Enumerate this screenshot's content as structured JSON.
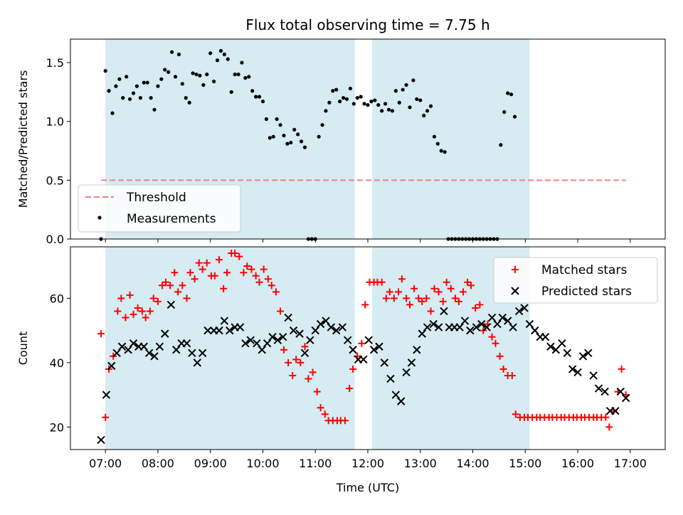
{
  "title": "Flux total observing time = 7.75 h",
  "chart_data": [
    {
      "type": "scatter",
      "ylabel": "Matched/Predicted stars",
      "xlim": [
        "06:20",
        "17:40"
      ],
      "ylim": [
        0,
        1.7
      ],
      "yticks": [
        0.0,
        0.5,
        1.0,
        1.5
      ],
      "ytick_labels": [
        "0.0",
        "0.5",
        "1.0",
        "1.5"
      ],
      "xticks": [
        "07:00",
        "08:00",
        "09:00",
        "10:00",
        "11:00",
        "12:00",
        "13:00",
        "14:00",
        "15:00",
        "16:00",
        "17:00"
      ],
      "shaded_intervals": [
        [
          "07:00",
          "11:45"
        ],
        [
          "12:05",
          "15:05"
        ]
      ],
      "legend_position": "lower-left",
      "threshold": {
        "name": "Threshold",
        "value": 0.5,
        "x_range": [
          "06:55",
          "16:55"
        ],
        "color": "#f08080"
      },
      "measurements": {
        "name": "Measurements",
        "color": "#000000",
        "points": [
          [
            "06:55",
            0.0
          ],
          [
            "07:00",
            1.43
          ],
          [
            "07:04",
            1.26
          ],
          [
            "07:08",
            1.07
          ],
          [
            "07:12",
            1.3
          ],
          [
            "07:16",
            1.36
          ],
          [
            "07:20",
            1.2
          ],
          [
            "07:24",
            1.38
          ],
          [
            "07:28",
            1.19
          ],
          [
            "07:32",
            1.24
          ],
          [
            "07:36",
            1.3
          ],
          [
            "07:40",
            1.2
          ],
          [
            "07:44",
            1.33
          ],
          [
            "07:48",
            1.33
          ],
          [
            "07:52",
            1.2
          ],
          [
            "07:56",
            1.1
          ],
          [
            "08:00",
            1.3
          ],
          [
            "08:04",
            1.36
          ],
          [
            "08:08",
            1.44
          ],
          [
            "08:12",
            1.42
          ],
          [
            "08:16",
            1.59
          ],
          [
            "08:20",
            1.38
          ],
          [
            "08:24",
            1.57
          ],
          [
            "08:28",
            1.32
          ],
          [
            "08:32",
            1.2
          ],
          [
            "08:36",
            1.16
          ],
          [
            "08:40",
            1.41
          ],
          [
            "08:44",
            1.4
          ],
          [
            "08:48",
            1.39
          ],
          [
            "08:52",
            1.31
          ],
          [
            "08:56",
            1.4
          ],
          [
            "09:00",
            1.58
          ],
          [
            "09:04",
            1.34
          ],
          [
            "09:08",
            1.52
          ],
          [
            "09:12",
            1.6
          ],
          [
            "09:16",
            1.57
          ],
          [
            "09:20",
            1.53
          ],
          [
            "09:24",
            1.25
          ],
          [
            "09:28",
            1.4
          ],
          [
            "09:32",
            1.4
          ],
          [
            "09:36",
            1.5
          ],
          [
            "09:40",
            1.37
          ],
          [
            "09:44",
            1.38
          ],
          [
            "09:48",
            1.26
          ],
          [
            "09:52",
            1.21
          ],
          [
            "09:56",
            1.21
          ],
          [
            "10:00",
            1.17
          ],
          [
            "10:04",
            1.02
          ],
          [
            "10:08",
            0.86
          ],
          [
            "10:12",
            0.87
          ],
          [
            "10:16",
            1.02
          ],
          [
            "10:20",
            0.97
          ],
          [
            "10:24",
            0.88
          ],
          [
            "10:28",
            0.81
          ],
          [
            "10:32",
            0.82
          ],
          [
            "10:36",
            0.93
          ],
          [
            "10:40",
            0.89
          ],
          [
            "10:44",
            0.83
          ],
          [
            "10:48",
            0.78
          ],
          [
            "10:52",
            0.0
          ],
          [
            "10:56",
            0.0
          ],
          [
            "11:00",
            0.0
          ],
          [
            "11:04",
            0.87
          ],
          [
            "11:08",
            0.97
          ],
          [
            "11:12",
            1.09
          ],
          [
            "11:16",
            1.16
          ],
          [
            "11:20",
            1.26
          ],
          [
            "11:24",
            1.27
          ],
          [
            "11:28",
            1.17
          ],
          [
            "11:32",
            1.2
          ],
          [
            "11:36",
            1.19
          ],
          [
            "11:40",
            1.28
          ],
          [
            "11:44",
            1.15
          ],
          [
            "11:48",
            1.2
          ],
          [
            "11:52",
            1.21
          ],
          [
            "11:56",
            1.15
          ],
          [
            "12:00",
            1.14
          ],
          [
            "12:04",
            1.17
          ],
          [
            "12:08",
            1.18
          ],
          [
            "12:12",
            1.14
          ],
          [
            "12:16",
            1.09
          ],
          [
            "12:20",
            1.15
          ],
          [
            "12:24",
            1.1
          ],
          [
            "12:28",
            1.09
          ],
          [
            "12:32",
            1.26
          ],
          [
            "12:36",
            1.16
          ],
          [
            "12:40",
            1.27
          ],
          [
            "12:44",
            1.31
          ],
          [
            "12:48",
            1.12
          ],
          [
            "12:52",
            1.35
          ],
          [
            "12:56",
            1.19
          ],
          [
            "13:00",
            1.18
          ],
          [
            "13:04",
            1.05
          ],
          [
            "13:08",
            1.09
          ],
          [
            "13:12",
            1.13
          ],
          [
            "13:16",
            0.87
          ],
          [
            "13:20",
            0.81
          ],
          [
            "13:24",
            0.75
          ],
          [
            "13:28",
            0.74
          ],
          [
            "13:32",
            0.0
          ],
          [
            "13:36",
            0.0
          ],
          [
            "13:40",
            0.0
          ],
          [
            "13:44",
            0.0
          ],
          [
            "13:48",
            0.0
          ],
          [
            "13:52",
            0.0
          ],
          [
            "13:56",
            0.0
          ],
          [
            "14:00",
            0.0
          ],
          [
            "14:04",
            0.0
          ],
          [
            "14:08",
            0.0
          ],
          [
            "14:12",
            0.0
          ],
          [
            "14:16",
            0.0
          ],
          [
            "14:20",
            0.0
          ],
          [
            "14:24",
            0.0
          ],
          [
            "14:28",
            0.0
          ],
          [
            "14:32",
            0.8
          ],
          [
            "14:36",
            1.08
          ],
          [
            "14:40",
            1.24
          ],
          [
            "14:44",
            1.23
          ],
          [
            "14:48",
            1.04
          ]
        ]
      }
    },
    {
      "type": "scatter",
      "xlabel": "Time (UTC)",
      "ylabel": "Count",
      "xlim": [
        "06:20",
        "17:40"
      ],
      "ylim": [
        13,
        76
      ],
      "yticks": [
        20,
        40,
        60
      ],
      "ytick_labels": [
        "20",
        "40",
        "60"
      ],
      "xticks": [
        "07:00",
        "08:00",
        "09:00",
        "10:00",
        "11:00",
        "12:00",
        "13:00",
        "14:00",
        "15:00",
        "16:00",
        "17:00"
      ],
      "xtick_labels": [
        "07:00",
        "08:00",
        "09:00",
        "10:00",
        "11:00",
        "12:00",
        "13:00",
        "14:00",
        "15:00",
        "16:00",
        "17:00"
      ],
      "shaded_intervals": [
        [
          "07:00",
          "11:45"
        ],
        [
          "12:05",
          "15:05"
        ]
      ],
      "legend_position": "upper-right",
      "series": [
        {
          "name": "Matched stars",
          "marker": "plus",
          "color": "#ff0000",
          "values": [
            49,
            23,
            38,
            42,
            56,
            60,
            54,
            61,
            55,
            57,
            56,
            54,
            56,
            60,
            59,
            64,
            65,
            64,
            68,
            62,
            64,
            60,
            68,
            66,
            71,
            69,
            71,
            67,
            67,
            72,
            63,
            68,
            74,
            74,
            73,
            68,
            70,
            69,
            67,
            65,
            69,
            66,
            64,
            62,
            56,
            44,
            40,
            36,
            41,
            40,
            45,
            35,
            37,
            31,
            26,
            24,
            22,
            22,
            22,
            22,
            22,
            32,
            38,
            42,
            46,
            58,
            65,
            65,
            65,
            65,
            60,
            62,
            60,
            62,
            66,
            60,
            58,
            63,
            60,
            59,
            60,
            56,
            63,
            62,
            59,
            65,
            63,
            60,
            59,
            62,
            65,
            64,
            57,
            58,
            50,
            52,
            48,
            46,
            42,
            38,
            36,
            36,
            24,
            23,
            23,
            23,
            23,
            23,
            23,
            23,
            23,
            23,
            23,
            23,
            23,
            23,
            23,
            23,
            23,
            23,
            23,
            23,
            23,
            23,
            23,
            20,
            25,
            31,
            38,
            30
          ]
        },
        {
          "name": "Predicted stars",
          "marker": "x",
          "color": "#000000",
          "values": [
            16,
            30,
            39,
            43,
            45,
            44,
            46,
            45,
            45,
            43,
            42,
            45,
            49,
            58,
            44,
            46,
            46,
            43,
            40,
            43,
            50,
            50,
            50,
            53,
            50,
            51,
            51,
            46,
            47,
            46,
            44,
            46,
            48,
            47,
            48,
            54,
            50,
            49,
            43,
            47,
            50,
            52,
            53,
            51,
            50,
            51,
            47,
            44,
            41,
            41,
            47,
            44,
            45,
            40,
            35,
            30,
            28,
            37,
            40,
            44,
            49,
            51,
            52,
            51,
            56,
            51,
            51,
            51,
            53,
            50,
            51,
            52,
            51,
            54,
            52,
            54,
            53,
            51,
            56,
            57,
            52,
            50,
            48,
            48,
            45,
            44,
            46,
            43,
            38,
            37,
            42,
            43,
            36,
            32,
            31,
            25,
            25,
            31,
            29
          ]
        }
      ]
    }
  ]
}
